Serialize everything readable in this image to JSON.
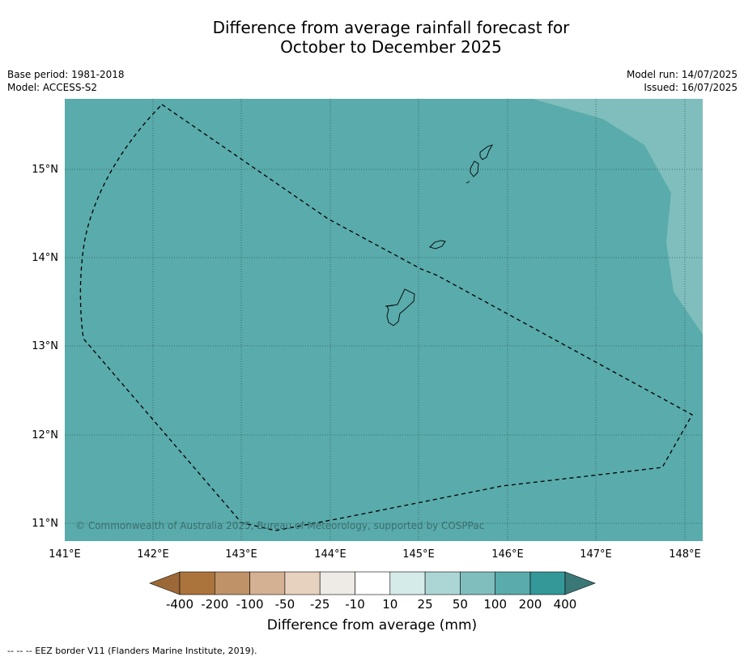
{
  "title": {
    "line1": "Difference from average rainfall forecast for",
    "line2": "October to December 2025"
  },
  "meta": {
    "base_period": "Base period: 1981-2018",
    "model": "Model: ACCESS-S2",
    "model_run": "Model run: 14/07/2025",
    "issued": "Issued: 16/07/2025"
  },
  "map": {
    "background_color": "#5aabab",
    "lighter_zone_color": "#80bebe",
    "lat_labels": [
      "15°N",
      "14°N",
      "13°N",
      "12°N",
      "11°N"
    ],
    "lon_labels": [
      "141°E",
      "142°E",
      "143°E",
      "144°E",
      "145°E",
      "146°E",
      "147°E",
      "148°E"
    ],
    "credit": "© Commonwealth of Australia 2025, Bureau of Meteorology, supported by COSPPac"
  },
  "colorbar": {
    "title": "Difference from average (mm)",
    "labels": [
      "-400",
      "-200",
      "-100",
      "-50",
      "-25",
      "-10",
      "10",
      "25",
      "50",
      "100",
      "200",
      "400"
    ],
    "colors": [
      "#ab743c",
      "#c09267",
      "#d4b193",
      "#e7d1bf",
      "#eeeae6",
      "#ffffff",
      "#d5ebea",
      "#abd6d5",
      "#80bebe",
      "#5aabab",
      "#349899"
    ],
    "under_color": "#9c6838",
    "over_color": "#3a7878"
  },
  "footnote": "-- -- -- EEZ border V11 (Flanders Marine Institute, 2019)."
}
